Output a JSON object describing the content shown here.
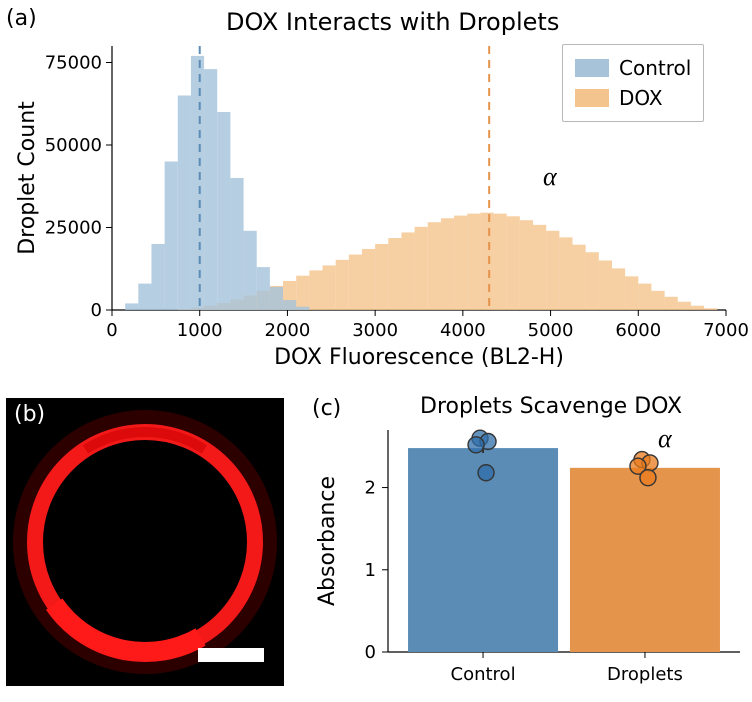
{
  "panel_a": {
    "label": "(a)",
    "title": "DOX Interacts with Droplets",
    "xlabel": "DOX Fluorescence (BL2-H)",
    "ylabel": "Droplet Count",
    "legend": {
      "control": "Control",
      "dox": "DOX"
    },
    "xlim": [
      0,
      7000
    ],
    "ylim": [
      0,
      80000
    ],
    "xticks": [
      0,
      1000,
      2000,
      3000,
      4000,
      5000,
      6000,
      7000
    ],
    "yticks": [
      0,
      25000,
      50000,
      75000
    ],
    "colors": {
      "control_fill": "#a6c3da",
      "control_edge": "#5a8cb5",
      "dox_fill": "#f4c48e",
      "dox_edge": "#e5944b",
      "axis": "#000000",
      "tick_fontsize": 18,
      "label_fontsize": 22,
      "title_fontsize": 24
    },
    "histogram": {
      "bin_width": 150,
      "control": {
        "bin_starts": [
          150,
          300,
          450,
          600,
          750,
          900,
          1050,
          1200,
          1350,
          1500,
          1650,
          1800,
          1950,
          2100
        ],
        "counts": [
          2000,
          8000,
          20000,
          45000,
          65000,
          77000,
          73000,
          60000,
          40000,
          24000,
          13000,
          7000,
          3000,
          1000
        ]
      },
      "dox": {
        "bin_starts": [
          750,
          900,
          1050,
          1200,
          1350,
          1500,
          1650,
          1800,
          1950,
          2100,
          2250,
          2400,
          2550,
          2700,
          2850,
          3000,
          3150,
          3300,
          3450,
          3600,
          3750,
          3900,
          4050,
          4200,
          4350,
          4500,
          4650,
          4800,
          4950,
          5100,
          5250,
          5400,
          5550,
          5700,
          5850,
          6000,
          6150,
          6300,
          6450,
          6600,
          6750
        ],
        "counts": [
          300,
          700,
          1300,
          2100,
          3200,
          4400,
          5800,
          7300,
          8800,
          10400,
          12000,
          13500,
          15200,
          16800,
          18500,
          20000,
          21800,
          23500,
          25200,
          26600,
          27800,
          28600,
          29200,
          29500,
          29200,
          28400,
          27200,
          25800,
          24000,
          22000,
          19800,
          17500,
          15000,
          12600,
          10200,
          8000,
          5800,
          4000,
          2500,
          1300,
          500
        ]
      },
      "control_mean_line_x": 1000,
      "dox_mean_line_x": 4300,
      "alpha_annotation": "α"
    }
  },
  "panel_b": {
    "label": "(b)",
    "image": {
      "bg": "#000000",
      "ring_color": "#ff1a1a",
      "ring_color_dim": "#cc0000",
      "scale_bar_color": "#ffffff"
    }
  },
  "panel_c": {
    "label": "(c)",
    "title": "Droplets Scavenge DOX",
    "ylabel": "Absorbance",
    "categories": [
      "Control",
      "Droplets"
    ],
    "values": [
      2.48,
      2.24
    ],
    "errors": [
      0.06,
      0.04
    ],
    "points": {
      "control": [
        2.6,
        2.56,
        2.52,
        2.18
      ],
      "droplets": [
        2.34,
        2.3,
        2.26,
        2.12
      ]
    },
    "ylim": [
      0,
      2.7
    ],
    "yticks": [
      0,
      1,
      2
    ],
    "colors": {
      "control_bar": "#5a8cb5",
      "control_point_fill": "#2f6eaa",
      "droplets_bar": "#e5944b",
      "droplets_point_fill": "#e87b1c",
      "point_edge": "#353535",
      "err_color": "#353535",
      "axis": "#000000",
      "tick_fontsize": 18,
      "label_fontsize": 22
    },
    "alpha_annotation": "α"
  }
}
